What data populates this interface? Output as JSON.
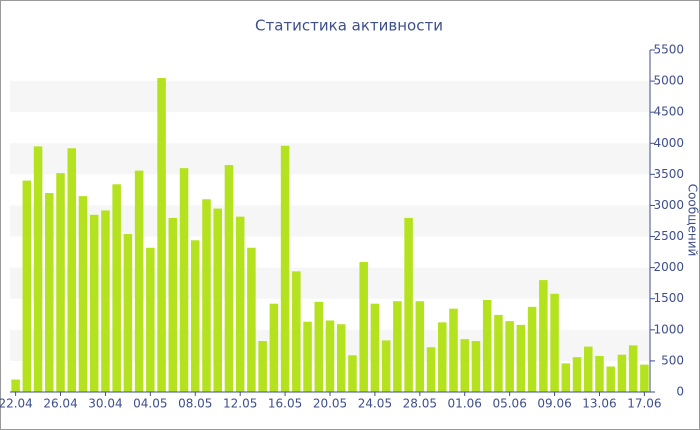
{
  "chart_data": {
    "type": "bar",
    "title": "Статистика активности",
    "y_label": "Сообщений",
    "categories": [
      "22.04",
      null,
      null,
      null,
      "26.04",
      null,
      null,
      null,
      "30.04",
      null,
      null,
      null,
      "04.05",
      null,
      null,
      null,
      "08.05",
      null,
      null,
      null,
      "12.05",
      null,
      null,
      null,
      "16.05",
      null,
      null,
      null,
      "20.05",
      null,
      null,
      null,
      "24.05",
      null,
      null,
      null,
      "28.05",
      null,
      null,
      null,
      "01.06",
      null,
      null,
      null,
      "05.06",
      null,
      null,
      null,
      "09.06",
      null,
      null,
      null,
      "13.06",
      null,
      null,
      null,
      "17.06"
    ],
    "values": [
      200,
      3400,
      3950,
      3200,
      3520,
      3920,
      3150,
      2850,
      2920,
      3340,
      2540,
      3560,
      2320,
      5050,
      2800,
      3600,
      2440,
      3100,
      2950,
      3650,
      2820,
      2320,
      820,
      1420,
      3960,
      1940,
      1130,
      1450,
      1150,
      1090,
      590,
      2090,
      1420,
      830,
      1460,
      2800,
      1460,
      720,
      1120,
      1340,
      850,
      820,
      1480,
      1240,
      1140,
      1080,
      1370,
      1800,
      1580,
      460,
      560,
      730,
      580,
      410,
      600,
      750,
      440
    ],
    "color": "#b5e21f",
    "ylim": [
      0,
      5500
    ],
    "yticks": [
      0,
      500,
      1000,
      1500,
      2000,
      2500,
      3000,
      3500,
      4000,
      4500,
      5000,
      5500
    ],
    "grid": true,
    "y_axis_side": "right"
  }
}
